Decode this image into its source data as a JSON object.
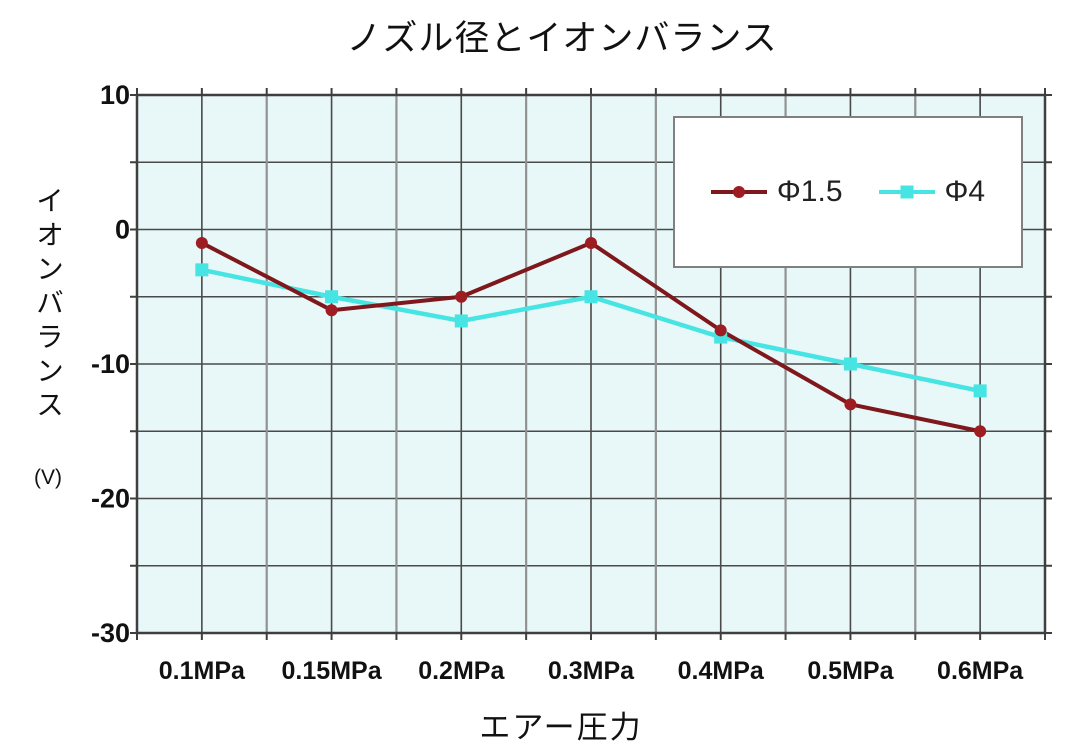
{
  "title": "ノズル径とイオンバランス",
  "chart_data": {
    "type": "line",
    "title": "ノズル径とイオンバランス",
    "categories": [
      "0.1MPa",
      "0.15MPa",
      "0.2MPa",
      "0.3MPa",
      "0.4MPa",
      "0.5MPa",
      "0.6MPa"
    ],
    "series": [
      {
        "name": "Φ1.5",
        "values": [
          -1,
          -6,
          -5,
          -1,
          -7.5,
          -13,
          -15
        ],
        "color": "#7e181d",
        "marker_color": "#9e1d22",
        "marker": "circle"
      },
      {
        "name": "Φ4",
        "values": [
          -3,
          -5,
          -6.8,
          -5,
          -8,
          -10,
          -12
        ],
        "color": "#47e4e4",
        "marker_color": "#47e4e4",
        "marker": "square"
      }
    ],
    "xlabel": "エアー圧力",
    "ylabel": "イオンバランス",
    "ylabel_unit": "(V)",
    "ylim": [
      -30,
      10
    ],
    "ytick_labels": [
      "10",
      "0",
      "-10",
      "-20",
      "-30"
    ],
    "grid": true,
    "gridline_step": 5,
    "legend_position": "top-right",
    "colors": {
      "plot_bg": "#e8f7f7",
      "border": "#3f3f3f",
      "grid_dark": "#4a4a4a",
      "grid_gray": "#929292",
      "tick": "#3f3f3f",
      "text": "#111111",
      "legend_bg": "#ffffff",
      "legend_border": "#808080"
    }
  }
}
